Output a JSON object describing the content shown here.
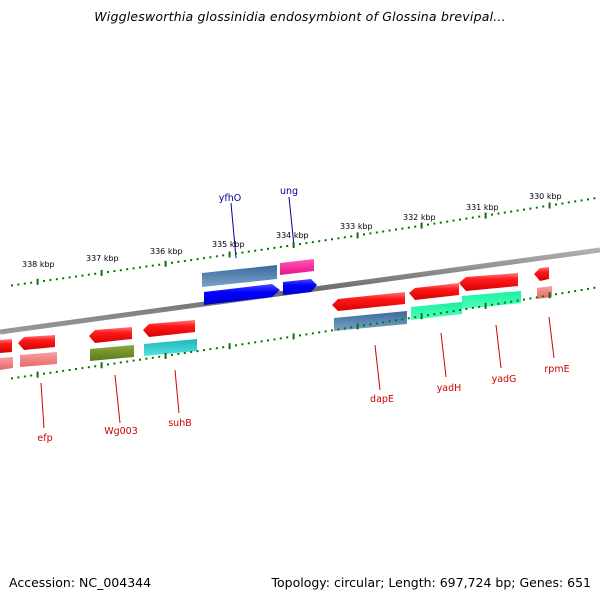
{
  "title": "Wigglesworthia glossinidia endosymbiont of Glossina brevipal...",
  "footer": {
    "accession": "Accession: NC_004344",
    "summary": "Topology: circular; Length: 697,724 bp; Genes: 651"
  },
  "colors": {
    "backbone": "#7a7a7a",
    "tick": "#007700",
    "label_top": "#000099",
    "label_bottom": "#cc0000"
  },
  "scale_labels": [
    "338 kbp",
    "337 kbp",
    "336 kbp",
    "335 kbp",
    "334 kbp",
    "333 kbp",
    "332 kbp",
    "331 kbp",
    "330 kbp"
  ],
  "genes": [
    {
      "name": "yfhO",
      "side": "top"
    },
    {
      "name": "ung",
      "side": "top"
    },
    {
      "name": "efp",
      "side": "bottom"
    },
    {
      "name": "Wg003",
      "side": "bottom"
    },
    {
      "name": "suhB",
      "side": "bottom"
    },
    {
      "name": "dapE",
      "side": "bottom"
    },
    {
      "name": "yadH",
      "side": "bottom"
    },
    {
      "name": "yadG",
      "side": "bottom"
    },
    {
      "name": "rpmE",
      "side": "bottom"
    }
  ]
}
